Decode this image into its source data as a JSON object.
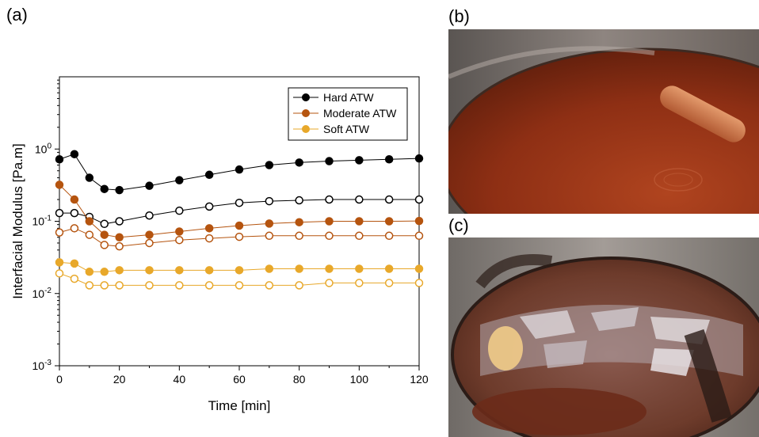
{
  "panels": {
    "a": "(a)",
    "b": "(b)",
    "c": "(c)"
  },
  "colors": {
    "hard": "#000000",
    "moderate": "#b5540f",
    "soft": "#e8a82a"
  },
  "chart_data": {
    "type": "scatter",
    "xlabel": "Time [min]",
    "ylabel": "Interfacial Modulus [Pa.m]",
    "xlim": [
      0,
      120
    ],
    "ylim": [
      0.001,
      10
    ],
    "yscale": "log",
    "xticks": [
      0,
      20,
      40,
      60,
      80,
      100,
      120
    ],
    "yticks": [
      {
        "value": 0.001,
        "label": "10-3",
        "base": "10",
        "exp": "-3"
      },
      {
        "value": 0.01,
        "label": "10-2",
        "base": "10",
        "exp": "-2"
      },
      {
        "value": 0.1,
        "label": "10-1",
        "base": "10",
        "exp": "-1"
      },
      {
        "value": 1,
        "label": "100",
        "base": "10",
        "exp": "0"
      }
    ],
    "legend_position": "top-right",
    "grid": false,
    "series": [
      {
        "name": "Hard ATW",
        "key": "hard",
        "filled": true,
        "x": [
          0,
          5,
          10,
          15,
          20,
          30,
          40,
          50,
          60,
          70,
          80,
          90,
          100,
          110,
          120
        ],
        "y": [
          0.72,
          0.85,
          0.4,
          0.28,
          0.27,
          0.31,
          0.37,
          0.44,
          0.52,
          0.6,
          0.65,
          0.68,
          0.7,
          0.72,
          0.74
        ]
      },
      {
        "name": "Hard ATW",
        "key": "hard",
        "filled": false,
        "legend": false,
        "x": [
          0,
          5,
          10,
          15,
          20,
          30,
          40,
          50,
          60,
          70,
          80,
          90,
          100,
          110,
          120
        ],
        "y": [
          0.13,
          0.13,
          0.115,
          0.092,
          0.1,
          0.12,
          0.14,
          0.16,
          0.18,
          0.19,
          0.195,
          0.2,
          0.2,
          0.2,
          0.2
        ]
      },
      {
        "name": "Moderate ATW",
        "key": "moderate",
        "filled": true,
        "x": [
          0,
          5,
          10,
          15,
          20,
          30,
          40,
          50,
          60,
          70,
          80,
          90,
          100,
          110,
          120
        ],
        "y": [
          0.32,
          0.2,
          0.1,
          0.065,
          0.06,
          0.065,
          0.072,
          0.08,
          0.087,
          0.093,
          0.097,
          0.1,
          0.1,
          0.1,
          0.101
        ]
      },
      {
        "name": "Moderate ATW",
        "key": "moderate",
        "filled": false,
        "legend": false,
        "x": [
          0,
          5,
          10,
          15,
          20,
          30,
          40,
          50,
          60,
          70,
          80,
          90,
          100,
          110,
          120
        ],
        "y": [
          0.07,
          0.08,
          0.065,
          0.047,
          0.045,
          0.05,
          0.055,
          0.058,
          0.061,
          0.063,
          0.063,
          0.063,
          0.063,
          0.063,
          0.063
        ]
      },
      {
        "name": "Soft ATW",
        "key": "soft",
        "filled": true,
        "x": [
          0,
          5,
          10,
          15,
          20,
          30,
          40,
          50,
          60,
          70,
          80,
          90,
          100,
          110,
          120
        ],
        "y": [
          0.027,
          0.026,
          0.02,
          0.02,
          0.021,
          0.021,
          0.021,
          0.021,
          0.021,
          0.022,
          0.022,
          0.022,
          0.022,
          0.022,
          0.022
        ]
      },
      {
        "name": "Soft ATW",
        "key": "soft",
        "filled": false,
        "legend": false,
        "x": [
          0,
          5,
          10,
          15,
          20,
          30,
          40,
          50,
          60,
          70,
          80,
          90,
          100,
          110,
          120
        ],
        "y": [
          0.019,
          0.016,
          0.013,
          0.013,
          0.013,
          0.013,
          0.013,
          0.013,
          0.013,
          0.013,
          0.013,
          0.014,
          0.014,
          0.014,
          0.014
        ]
      }
    ]
  }
}
